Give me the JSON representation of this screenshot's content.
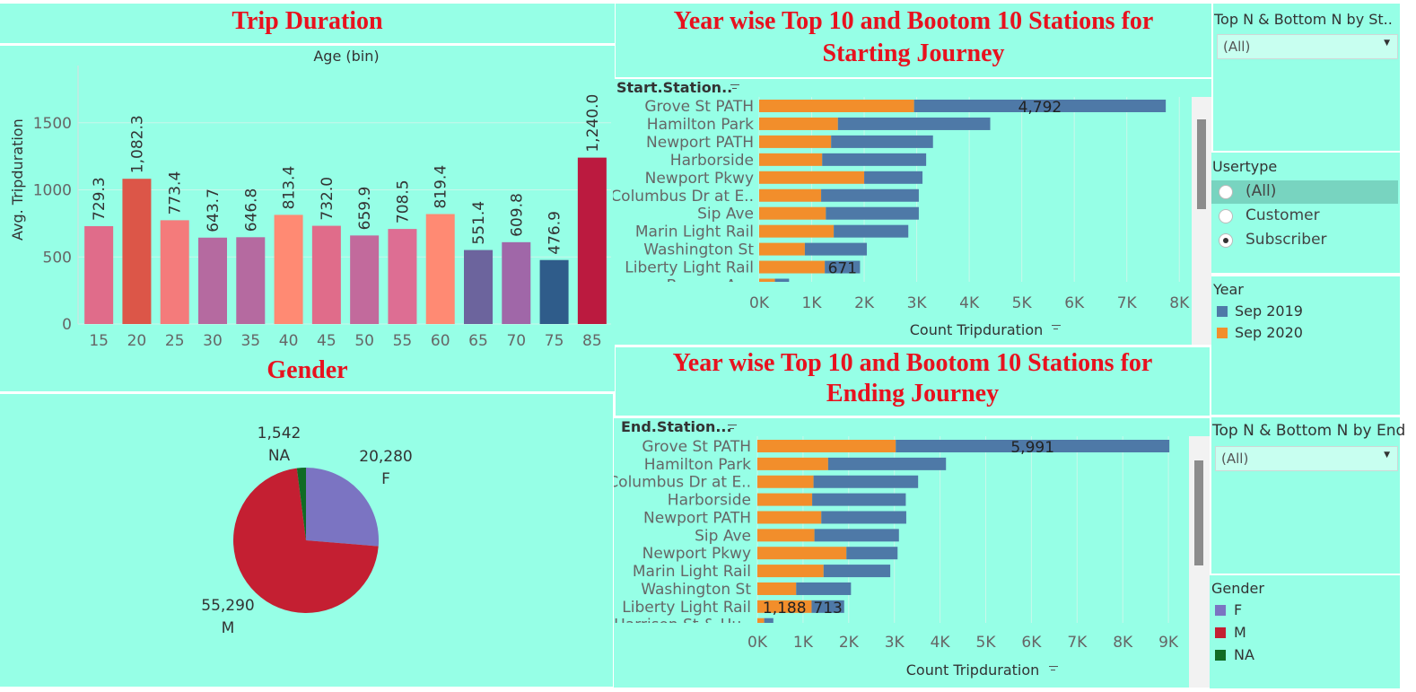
{
  "titles": {
    "trip_duration": "Trip Duration",
    "gender": "Gender",
    "start": "Year wise Top 10 and Bootom 10 Stations for Starting Journey",
    "start_l1": "Year wise Top 10 and Bootom 10 Stations for",
    "start_l2": "Starting Journey",
    "end_l1": "Year wise Top 10 and Bootom 10 Stations for",
    "end_l2": "Ending Journey"
  },
  "filters": {
    "top_start": {
      "label": "Top N & Bottom N by St..",
      "value": "(All)"
    },
    "usertype": {
      "label": "Usertype",
      "options": [
        "(All)",
        "Customer",
        "Subscriber"
      ],
      "selected": "Subscriber"
    },
    "year_legend": {
      "label": "Year",
      "items": [
        {
          "name": "Sep 2019",
          "color": "#4e79a7"
        },
        {
          "name": "Sep 2020",
          "color": "#f28e2b"
        }
      ]
    },
    "top_end": {
      "label": "Top N & Bottom N by End",
      "value": "(All)"
    },
    "gender_legend": {
      "label": "Gender",
      "items": [
        {
          "name": "F",
          "color": "#7b74c2"
        },
        {
          "name": "M",
          "color": "#c41f32"
        },
        {
          "name": "NA",
          "color": "#106b24"
        }
      ]
    }
  },
  "chart_data": [
    {
      "type": "bar",
      "title": "Trip Duration",
      "xlabel": "Age (bin)",
      "ylabel": "Avg. Tripduration",
      "ylim": [
        0,
        1700
      ],
      "yticks": [
        0,
        500,
        1000,
        1500
      ],
      "categories": [
        "15",
        "20",
        "25",
        "30",
        "35",
        "40",
        "45",
        "50",
        "55",
        "60",
        "65",
        "70",
        "75",
        "85"
      ],
      "values": [
        729.3,
        1082.3,
        773.4,
        643.7,
        646.8,
        813.4,
        732.0,
        659.9,
        708.5,
        819.4,
        551.4,
        609.8,
        476.9,
        1240.0
      ],
      "labels": [
        "729.3",
        "1,082.3",
        "773.4",
        "643.7",
        "646.8",
        "813.4",
        "732.0",
        "659.9",
        "708.5",
        "819.4",
        "551.4",
        "609.8",
        "476.9",
        "1,240.0"
      ],
      "colors": [
        "#e06c8a",
        "#dc5648",
        "#f47b7b",
        "#b56aa0",
        "#b56aa0",
        "#ff8a73",
        "#e06c8a",
        "#c26a9c",
        "#dd6e93",
        "#ff8a73",
        "#6c649d",
        "#a067a8",
        "#2f5c8a",
        "#bb1a3f"
      ],
      "grid": true
    },
    {
      "type": "pie",
      "title": "Gender",
      "slices": [
        {
          "name": "F",
          "value": 20280,
          "label": "20,280",
          "color": "#7b74c2"
        },
        {
          "name": "M",
          "value": 55290,
          "label": "55,290",
          "color": "#c41f32"
        },
        {
          "name": "NA",
          "value": 1542,
          "label": "1,542",
          "color": "#106b24"
        }
      ]
    },
    {
      "type": "bar",
      "orientation": "horizontal",
      "stacked": true,
      "title": "Year wise Top 10 and Bootom 10 Stations for Starting Journey",
      "row_header": "Start.Station..",
      "xlabel": "Count Tripduration",
      "xlim": [
        0,
        8300
      ],
      "xticks": [
        0,
        1000,
        2000,
        3000,
        4000,
        5000,
        6000,
        7000,
        8000
      ],
      "xtick_labels": [
        "0K",
        "1K",
        "2K",
        "3K",
        "4K",
        "5K",
        "6K",
        "7K",
        "8K"
      ],
      "categories": [
        "Grove St PATH",
        "Hamilton Park",
        "Newport PATH",
        "Harborside",
        "Newport Pkwy",
        "Columbus Dr at E..",
        "Sip Ave",
        "Marin Light Rail",
        "Washington St",
        "Liberty Light Rail",
        "Bergen Ave"
      ],
      "series": [
        {
          "name": "Sep 2020",
          "color": "#f28e2b",
          "values": [
            2950,
            1500,
            1370,
            1200,
            2000,
            1180,
            1270,
            1420,
            870,
            1250,
            300
          ]
        },
        {
          "name": "Sep 2019",
          "color": "#4e79a7",
          "values": [
            4792,
            2900,
            1940,
            1980,
            1110,
            1860,
            1770,
            1420,
            1180,
            671,
            270
          ]
        }
      ],
      "annotations": [
        {
          "row": "Grove St PATH",
          "text": "4,792"
        },
        {
          "row": "Liberty Light Rail",
          "text": "671"
        }
      ]
    },
    {
      "type": "bar",
      "orientation": "horizontal",
      "stacked": true,
      "title": "Year wise Top 10 and Bootom 10 Stations for Ending Journey",
      "row_header": "End.Station...",
      "xlabel": "Count Tripduration",
      "xlim": [
        0,
        9400
      ],
      "xticks": [
        0,
        1000,
        2000,
        3000,
        4000,
        5000,
        6000,
        7000,
        8000,
        9000
      ],
      "xtick_labels": [
        "0K",
        "1K",
        "2K",
        "3K",
        "4K",
        "5K",
        "6K",
        "7K",
        "8K",
        "9K"
      ],
      "categories": [
        "Grove St PATH",
        "Hamilton Park",
        "Columbus Dr at E..",
        "Harborside",
        "Newport PATH",
        "Sip Ave",
        "Newport Pkwy",
        "Marin Light Rail",
        "Washington St",
        "Liberty Light Rail",
        "Harrison St & Hu.."
      ],
      "series": [
        {
          "name": "Sep 2020",
          "color": "#f28e2b",
          "values": [
            3030,
            1550,
            1230,
            1200,
            1400,
            1250,
            1950,
            1450,
            850,
            1188,
            150
          ]
        },
        {
          "name": "Sep 2019",
          "color": "#4e79a7",
          "values": [
            5991,
            2580,
            2290,
            2050,
            1860,
            1850,
            1120,
            1460,
            1200,
            713,
            200
          ]
        }
      ],
      "annotations": [
        {
          "row": "Grove St PATH",
          "text": "5,991"
        },
        {
          "row": "Liberty Light Rail",
          "text": "1,188"
        },
        {
          "row": "Liberty Light Rail",
          "text": "713"
        }
      ]
    }
  ]
}
